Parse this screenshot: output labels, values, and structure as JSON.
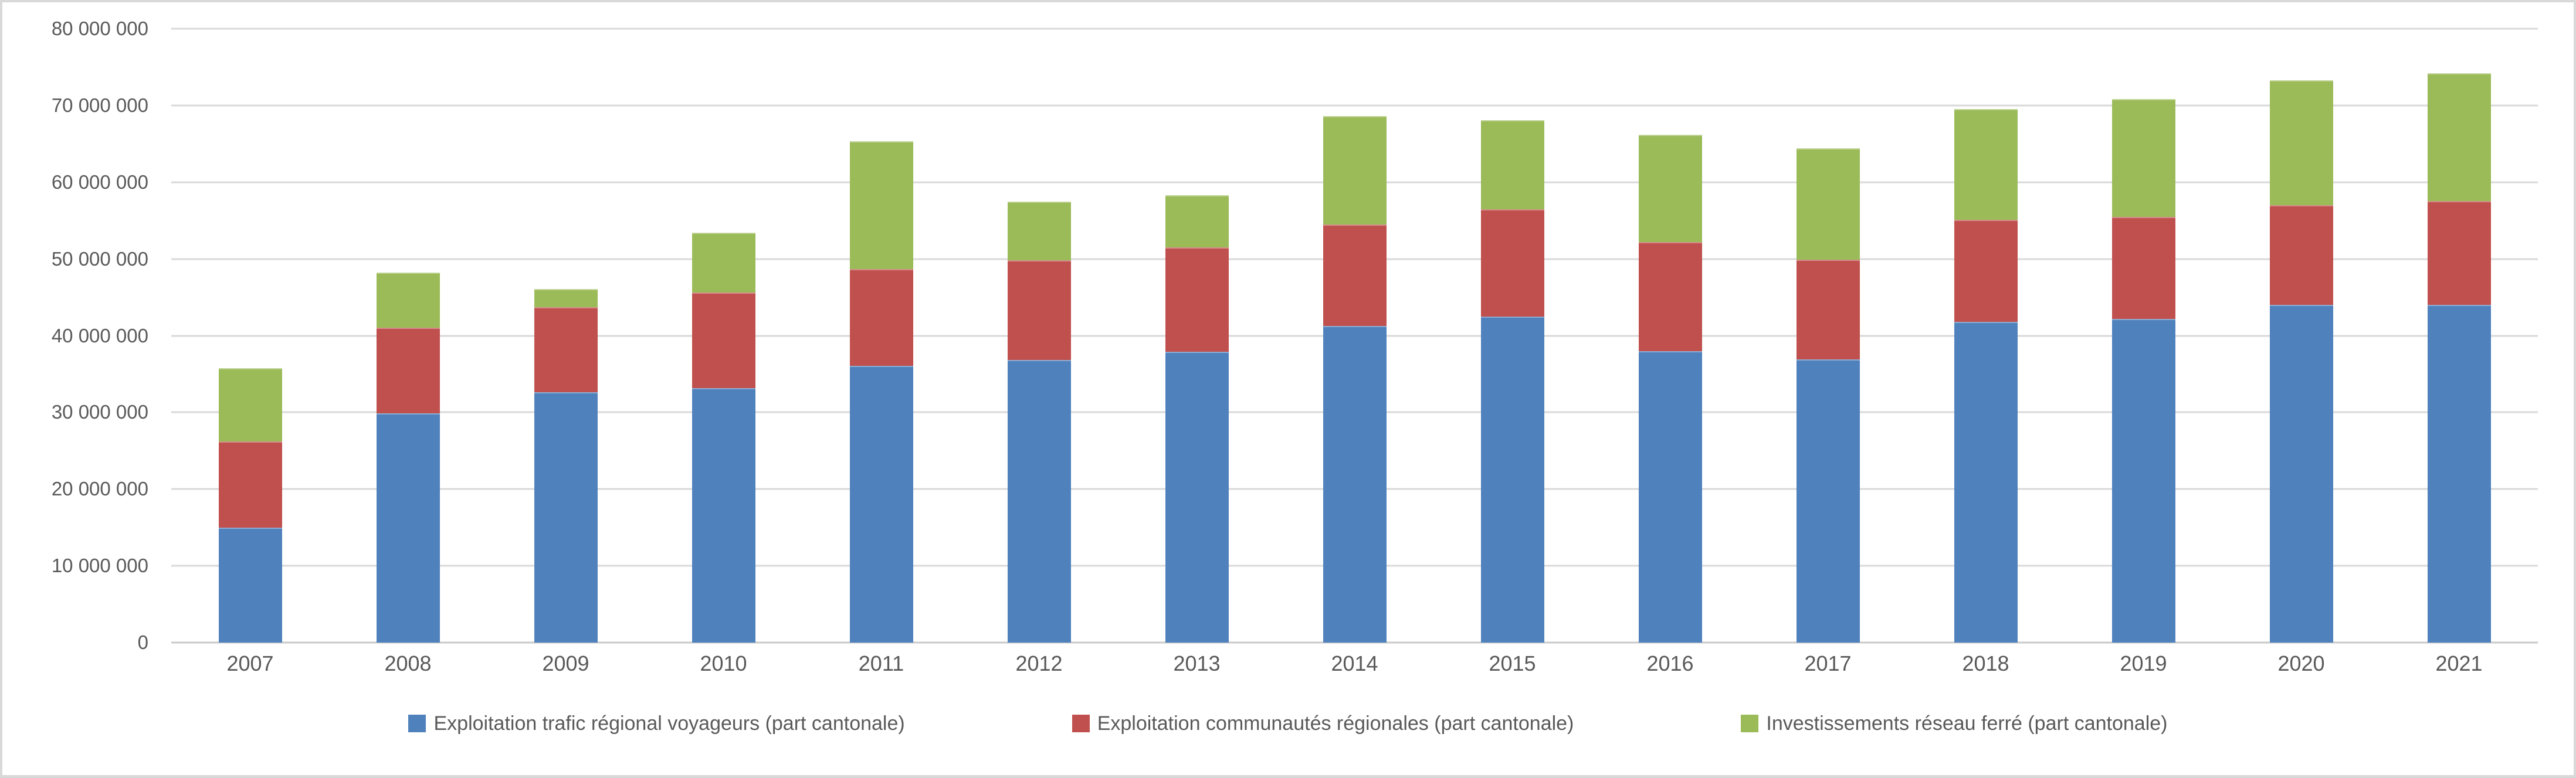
{
  "chart_data": {
    "type": "bar",
    "stacked": true,
    "title": "",
    "xlabel": "",
    "ylabel": "",
    "categories": [
      "2007",
      "2008",
      "2009",
      "2010",
      "2011",
      "2012",
      "2013",
      "2014",
      "2015",
      "2016",
      "2017",
      "2018",
      "2019",
      "2020",
      "2021"
    ],
    "series": [
      {
        "name": "Exploitation trafic régional voyageurs (part cantonale)",
        "color": "#4F81BD",
        "values": [
          15000000,
          29900000,
          32600000,
          33200000,
          36100000,
          36800000,
          37900000,
          41300000,
          42500000,
          38000000,
          36900000,
          41800000,
          42200000,
          44000000,
          44000000
        ]
      },
      {
        "name": "Exploitation communautés régionales (part cantonale)",
        "color": "#C0504D",
        "values": [
          11200000,
          11100000,
          11100000,
          12400000,
          12600000,
          13000000,
          13600000,
          13200000,
          14000000,
          14200000,
          13000000,
          13300000,
          13300000,
          13000000,
          13500000
        ]
      },
      {
        "name": "Investissements réseau ferré (part cantonale)",
        "color": "#9BBB59",
        "values": [
          9600000,
          7200000,
          2400000,
          7800000,
          16600000,
          7700000,
          6800000,
          14100000,
          11600000,
          14000000,
          14500000,
          14400000,
          15300000,
          16300000,
          16700000
        ]
      }
    ],
    "ylim": [
      0,
      80000000
    ],
    "ytick_step": 10000000,
    "ytick_labels_top_down": [
      "80 000 000",
      "70 000 000",
      "60 000 000",
      "50 000 000",
      "40 000 000",
      "30 000 000",
      "20 000 000",
      "10 000 000",
      "0"
    ],
    "grid": true,
    "legend_position": "bottom"
  },
  "colors": {
    "background": "#ffffff",
    "frame_border": "#d9d9d9",
    "gridline": "#d9d9d9",
    "axis_line": "#c9c9c9",
    "tick_text": "#595959",
    "legend_text": "#595959"
  }
}
